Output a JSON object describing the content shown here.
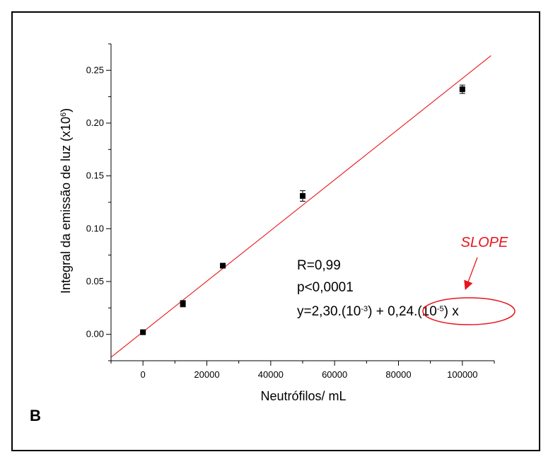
{
  "panel_letter": "B",
  "chart_data": {
    "type": "scatter",
    "xlabel": "Neutrófilos/ mL",
    "ylabel": "Integral da emissão de luz (x10",
    "ylabel_sup": "6",
    "ylabel_close": ")",
    "xlim": [
      -10000,
      110000
    ],
    "ylim": [
      -0.025,
      0.275
    ],
    "x_ticks": [
      0,
      20000,
      40000,
      60000,
      80000,
      100000
    ],
    "x_tick_labels": [
      "0",
      "20000",
      "40000",
      "60000",
      "80000",
      "100000"
    ],
    "y_ticks": [
      0.0,
      0.05,
      0.1,
      0.15,
      0.2,
      0.25
    ],
    "y_tick_labels": [
      "0.00",
      "0.05",
      "0.10",
      "0.15",
      "0.20",
      "0.25"
    ],
    "points": [
      {
        "x": 0,
        "y": 0.002,
        "err": 0.001
      },
      {
        "x": 12500,
        "y": 0.029,
        "err": 0.003
      },
      {
        "x": 25000,
        "y": 0.065,
        "err": 0.0015
      },
      {
        "x": 50000,
        "y": 0.131,
        "err": 0.005
      },
      {
        "x": 100000,
        "y": 0.232,
        "err": 0.004
      }
    ],
    "fit": {
      "intercept": 0.0023,
      "slope": 2.4e-06,
      "color": "#e8141b"
    },
    "marker_color": "#000000",
    "annotation": {
      "r": "R=0,99",
      "p": "p<0,0001",
      "eq_prefix": "y=2,30.(10",
      "eq_prefix_sup": "-3",
      "eq_mid": ") + ",
      "eq_slope": "0,24.(10",
      "eq_slope_sup": "-5",
      "eq_slope_close": ")",
      "eq_suffix": " x"
    },
    "slope_label": "SLOPE",
    "highlight_color": "#e8141b"
  }
}
